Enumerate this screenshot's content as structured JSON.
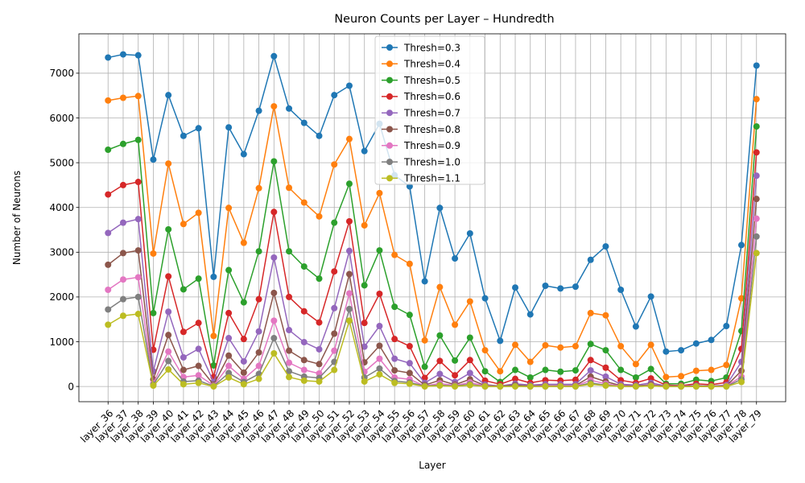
{
  "chart_data": {
    "type": "line",
    "title": "Neuron Counts per Layer – Hundredth",
    "xlabel": "Layer",
    "ylabel": "Number of Neurons",
    "ylim": [
      -340,
      7880
    ],
    "yticks": [
      0,
      1000,
      2000,
      3000,
      4000,
      5000,
      6000,
      7000
    ],
    "grid": true,
    "legend_position": "top-center",
    "categories": [
      "layer_36",
      "layer_37",
      "layer_38",
      "layer_39",
      "layer_40",
      "layer_41",
      "layer_42",
      "layer_43",
      "layer_44",
      "layer_45",
      "layer_46",
      "layer_47",
      "layer_48",
      "layer_49",
      "layer_50",
      "layer_51",
      "layer_52",
      "layer_53",
      "layer_54",
      "layer_55",
      "layer_56",
      "layer_57",
      "layer_58",
      "layer_59",
      "layer_60",
      "layer_61",
      "layer_62",
      "layer_63",
      "layer_64",
      "layer_65",
      "layer_66",
      "layer_67",
      "layer_68",
      "layer_69",
      "layer_70",
      "layer_71",
      "layer_72",
      "layer_73",
      "layer_74",
      "layer_75",
      "layer_76",
      "layer_77",
      "layer_78",
      "layer_79"
    ],
    "series": [
      {
        "name": "Thresh=0.3",
        "color": "#1f77b4",
        "values": [
          7350,
          7420,
          7400,
          5070,
          6510,
          5600,
          5770,
          2450,
          5790,
          5190,
          6160,
          7380,
          6210,
          5890,
          5600,
          6510,
          6720,
          5260,
          5870,
          4720,
          4470,
          2350,
          3990,
          2860,
          3420,
          1970,
          1020,
          2210,
          1610,
          2250,
          2190,
          2230,
          2830,
          3130,
          2160,
          1340,
          2010,
          780,
          810,
          960,
          1040,
          1350,
          3160,
          7170
        ]
      },
      {
        "name": "Thresh=0.4",
        "color": "#ff7f0e",
        "values": [
          6390,
          6450,
          6490,
          2970,
          4980,
          3630,
          3880,
          1130,
          3990,
          3210,
          4430,
          6260,
          4440,
          4110,
          3800,
          4960,
          5530,
          3600,
          4320,
          2940,
          2740,
          1030,
          2220,
          1380,
          1900,
          810,
          340,
          930,
          550,
          920,
          870,
          900,
          1640,
          1590,
          900,
          500,
          930,
          210,
          230,
          350,
          370,
          480,
          1970,
          6420
        ]
      },
      {
        "name": "Thresh=0.5",
        "color": "#2ca02c",
        "values": [
          5290,
          5420,
          5510,
          1640,
          3510,
          2170,
          2410,
          470,
          2600,
          1880,
          3020,
          5030,
          3020,
          2680,
          2410,
          3660,
          4530,
          2260,
          3040,
          1780,
          1600,
          440,
          1140,
          580,
          1090,
          340,
          100,
          370,
          200,
          370,
          330,
          360,
          950,
          810,
          370,
          200,
          390,
          60,
          60,
          150,
          120,
          200,
          1240,
          5810
        ]
      },
      {
        "name": "Thresh=0.6",
        "color": "#d62728",
        "values": [
          4290,
          4500,
          4570,
          820,
          2460,
          1220,
          1420,
          210,
          1640,
          1060,
          1950,
          3900,
          2000,
          1680,
          1430,
          2570,
          3690,
          1420,
          2070,
          1060,
          900,
          190,
          570,
          250,
          590,
          130,
          50,
          170,
          80,
          140,
          130,
          150,
          590,
          420,
          140,
          80,
          180,
          30,
          20,
          60,
          40,
          90,
          840,
          5230
        ]
      },
      {
        "name": "Thresh=0.7",
        "color": "#9467bd",
        "values": [
          3430,
          3660,
          3740,
          340,
          1670,
          650,
          840,
          100,
          1080,
          560,
          1230,
          2880,
          1260,
          990,
          830,
          1750,
          3030,
          890,
          1350,
          620,
          520,
          80,
          280,
          100,
          300,
          40,
          10,
          60,
          30,
          50,
          50,
          50,
          360,
          220,
          50,
          30,
          80,
          10,
          10,
          20,
          10,
          30,
          550,
          4710
        ]
      },
      {
        "name": "Thresh=0.8",
        "color": "#8c564b",
        "values": [
          2720,
          2980,
          3040,
          160,
          1150,
          370,
          460,
          40,
          690,
          310,
          760,
          2090,
          800,
          590,
          500,
          1180,
          2510,
          540,
          910,
          360,
          300,
          30,
          140,
          40,
          160,
          20,
          10,
          30,
          10,
          20,
          20,
          20,
          220,
          110,
          20,
          10,
          40,
          0,
          0,
          10,
          10,
          10,
          350,
          4190
        ]
      },
      {
        "name": "Thresh=0.9",
        "color": "#e377c2",
        "values": [
          2160,
          2390,
          2440,
          70,
          780,
          210,
          250,
          20,
          460,
          170,
          460,
          1470,
          530,
          370,
          290,
          800,
          2080,
          330,
          620,
          200,
          160,
          10,
          70,
          20,
          90,
          10,
          0,
          10,
          0,
          10,
          10,
          10,
          140,
          60,
          10,
          0,
          20,
          0,
          0,
          0,
          0,
          10,
          220,
          3750
        ]
      },
      {
        "name": "Thresh=1.0",
        "color": "#7f7f7f",
        "values": [
          1720,
          1950,
          2000,
          40,
          570,
          110,
          130,
          10,
          300,
          100,
          280,
          1080,
          340,
          220,
          190,
          550,
          1730,
          200,
          400,
          120,
          90,
          10,
          30,
          10,
          50,
          0,
          0,
          10,
          0,
          0,
          0,
          0,
          80,
          30,
          0,
          0,
          10,
          0,
          0,
          0,
          0,
          0,
          160,
          3350
        ]
      },
      {
        "name": "Thresh=1.1",
        "color": "#bcbd22",
        "values": [
          1380,
          1580,
          1620,
          20,
          380,
          50,
          80,
          0,
          200,
          50,
          170,
          740,
          210,
          130,
          110,
          370,
          1470,
          110,
          270,
          80,
          60,
          0,
          20,
          0,
          30,
          0,
          0,
          0,
          0,
          0,
          0,
          0,
          50,
          20,
          0,
          0,
          10,
          0,
          0,
          0,
          0,
          0,
          100,
          2980
        ]
      }
    ]
  }
}
